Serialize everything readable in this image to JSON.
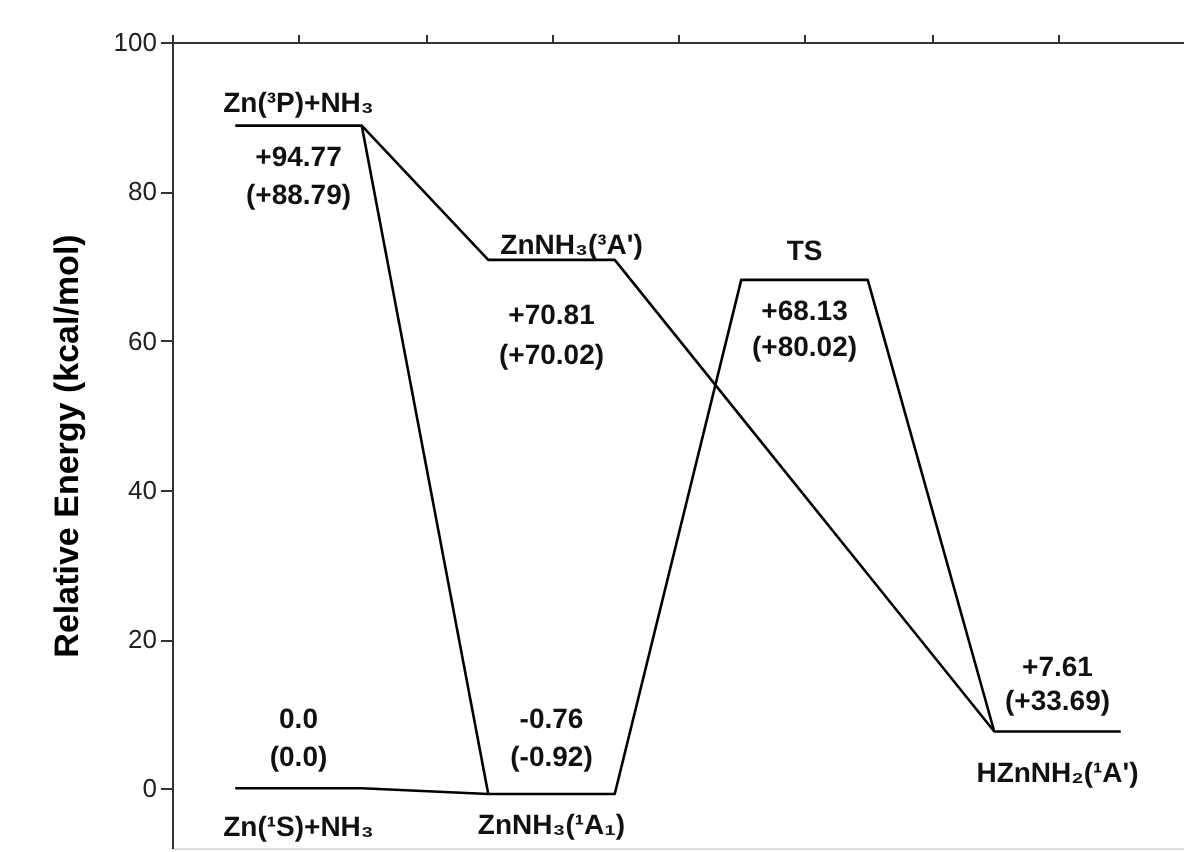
{
  "chart_data": {
    "type": "line",
    "ylabel": "Relative Energy (kcal/mol)",
    "ylim": [
      -8,
      100
    ],
    "yticks": [
      0,
      20,
      40,
      60,
      80,
      100
    ],
    "categories": [
      null,
      null,
      null,
      null,
      null,
      null,
      null,
      null
    ],
    "tick_labels": "y",
    "line_style": "solid",
    "series": [
      {
        "color": "#000000",
        "values": [
          0.0,
          0.0,
          -0.76,
          -0.76,
          68.13,
          68.13,
          7.61,
          7.61
        ]
      },
      {
        "color": "#000000",
        "values": [
          88.79,
          88.79,
          70.81,
          70.81,
          49.74,
          28.68,
          7.61,
          null
        ]
      },
      {
        "color": "#000000",
        "values": [
          null,
          88.79,
          -0.76,
          null,
          null,
          null,
          null,
          null
        ]
      }
    ],
    "annotations": [
      {
        "text": "Zn(³P)+NH₃",
        "y": 88.79
      },
      {
        "text": "+94.77",
        "y": 88.79
      },
      {
        "text": "(+88.79)",
        "y": 88.79
      },
      {
        "text": "ZnNH₃(³A')",
        "y": 70.81
      },
      {
        "text": "+70.81",
        "y": 70.81
      },
      {
        "text": "(+70.02)",
        "y": 70.81
      },
      {
        "text": "TS",
        "y": 68.13
      },
      {
        "text": "+68.13",
        "y": 68.13
      },
      {
        "text": "(+80.02)",
        "y": 68.13
      },
      {
        "text": "+7.61",
        "y": 7.61
      },
      {
        "text": "(+33.69)",
        "y": 7.61
      },
      {
        "text": "HZnNH₂(¹A')",
        "y": 7.61
      },
      {
        "text": "0.0",
        "y": 0.0
      },
      {
        "text": "(0.0)",
        "y": 0.0
      },
      {
        "text": "Zn(¹S)+NH₃",
        "y": 0.0
      },
      {
        "text": "-0.76",
        "y": -0.76
      },
      {
        "text": "(-0.92)",
        "y": -0.76
      },
      {
        "text": "ZnNH₃(¹A₁)",
        "y": -0.76
      }
    ]
  }
}
